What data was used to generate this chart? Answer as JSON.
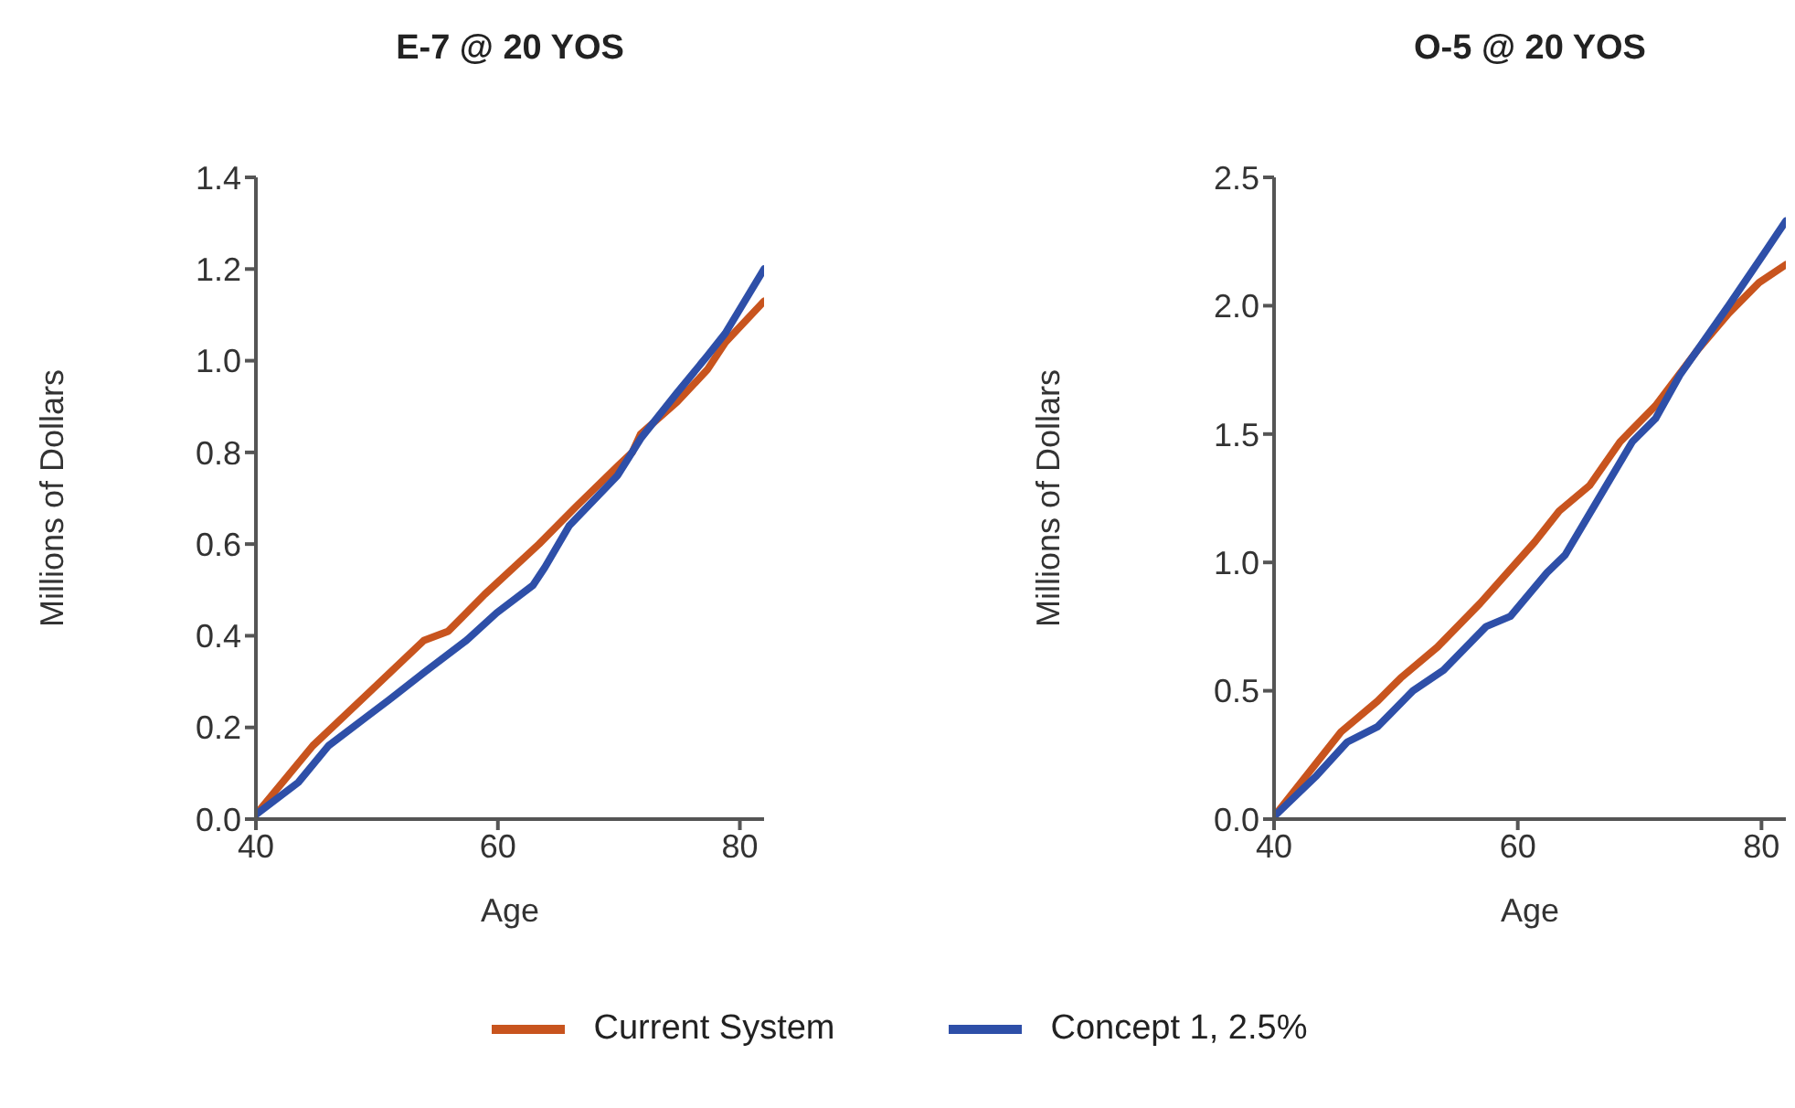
{
  "chart_data": [
    {
      "type": "line",
      "title": "E-7 @ 20 YOS",
      "xlabel": "Age",
      "ylabel": "Millions of Dollars",
      "xlim": [
        40,
        82
      ],
      "xticks": [
        40,
        60,
        80
      ],
      "ylim": [
        0,
        1.4
      ],
      "yticks": [
        {
          "value": 0,
          "label": "0.0"
        },
        {
          "value": 0.2,
          "label": "0.2"
        },
        {
          "value": 0.4,
          "label": "0.4"
        },
        {
          "value": 0.6,
          "label": "0.6"
        },
        {
          "value": 0.8,
          "label": "0.8"
        },
        {
          "value": 1.0,
          "label": "1.0"
        },
        {
          "value": 1.2,
          "label": "1.2"
        },
        {
          "value": 1.4,
          "label": "1.4"
        }
      ],
      "grid": false,
      "legend": "bottom",
      "marker": "none",
      "line_style": "solid",
      "series": [
        {
          "name": "Current System",
          "color": "#c8541e",
          "x": [
            40,
            44.7,
            49.5,
            53.9,
            55.9,
            58.9,
            63.4,
            66.4,
            69.9,
            71.1,
            71.8,
            74.8,
            77.3,
            78.8,
            82
          ],
          "values": [
            0.01,
            0.16,
            0.28,
            0.39,
            0.41,
            0.49,
            0.6,
            0.68,
            0.77,
            0.8,
            0.84,
            0.91,
            0.98,
            1.04,
            1.13
          ]
        },
        {
          "name": "Concept 1, 2.5%",
          "color": "#2e4fa8",
          "x": [
            40,
            43.5,
            46,
            49,
            51,
            53.9,
            57.4,
            59.9,
            62.9,
            63.9,
            65.9,
            69.9,
            71.8,
            74.8,
            77.3,
            78.8,
            82
          ],
          "values": [
            0.01,
            0.08,
            0.16,
            0.22,
            0.26,
            0.32,
            0.39,
            0.45,
            0.51,
            0.55,
            0.64,
            0.75,
            0.83,
            0.93,
            1.01,
            1.06,
            1.2
          ]
        }
      ]
    },
    {
      "type": "line",
      "title": "O-5 @ 20 YOS",
      "xlabel": "Age",
      "ylabel": "Millions of Dollars",
      "xlim": [
        40,
        82
      ],
      "xticks": [
        40,
        60,
        80
      ],
      "ylim": [
        0,
        2.5
      ],
      "yticks": [
        {
          "value": 0,
          "label": "0.0"
        },
        {
          "value": 0.5,
          "label": "0.5"
        },
        {
          "value": 1.0,
          "label": "1.0"
        },
        {
          "value": 1.5,
          "label": "1.5"
        },
        {
          "value": 2.0,
          "label": "2.0"
        },
        {
          "value": 2.5,
          "label": "2.5"
        }
      ],
      "grid": false,
      "marker": "none",
      "line_style": "solid",
      "series": [
        {
          "color": "#c8541e",
          "x": [
            40,
            45.5,
            48.5,
            50.4,
            53.4,
            56.9,
            61.4,
            63.4,
            65.9,
            68.4,
            71.3,
            74.8,
            77.3,
            79.8,
            82
          ],
          "values": [
            0.01,
            0.34,
            0.46,
            0.55,
            0.67,
            0.84,
            1.08,
            1.2,
            1.3,
            1.47,
            1.61,
            1.83,
            1.97,
            2.09,
            2.16
          ]
        },
        {
          "color": "#2e4fa8",
          "x": [
            40,
            43.5,
            46,
            48.5,
            51.4,
            53.9,
            57.4,
            59.4,
            62.4,
            63.9,
            66.4,
            69.4,
            71.3,
            73.3,
            77.3,
            80.3,
            82
          ],
          "values": [
            0.01,
            0.17,
            0.3,
            0.36,
            0.5,
            0.58,
            0.75,
            0.79,
            0.96,
            1.03,
            1.23,
            1.47,
            1.56,
            1.73,
            2.0,
            2.21,
            2.33
          ]
        }
      ]
    }
  ]
}
